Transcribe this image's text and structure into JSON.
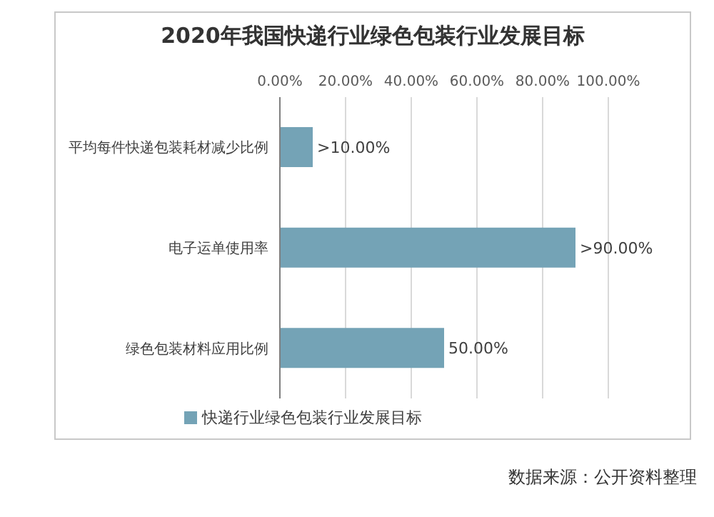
{
  "chart_data": {
    "type": "bar",
    "orientation": "horizontal",
    "title": "2020年我国快递行业绿色包装行业发展目标",
    "categories": [
      "平均每件快递包装耗材减少比例",
      "电子运单使用率",
      "绿色包装材料应用比例"
    ],
    "series": [
      {
        "name": "快递行业绿色包装行业发展目标",
        "color": "#74a3b6",
        "values": [
          10,
          90,
          50
        ],
        "value_labels": [
          ">10.00%",
          ">90.00%",
          "50.00%"
        ]
      }
    ],
    "xlim": [
      0,
      100
    ],
    "xticks": [
      {
        "value": 0,
        "label": "0.00%"
      },
      {
        "value": 20,
        "label": "20.00%"
      },
      {
        "value": 40,
        "label": "40.00%"
      },
      {
        "value": 60,
        "label": "60.00%"
      },
      {
        "value": 80,
        "label": "80.00%"
      },
      {
        "value": 100,
        "label": "100.00%"
      }
    ],
    "grid": "x",
    "legend": "bottom",
    "annotations": [
      "数据来源：公开资料整理"
    ]
  }
}
